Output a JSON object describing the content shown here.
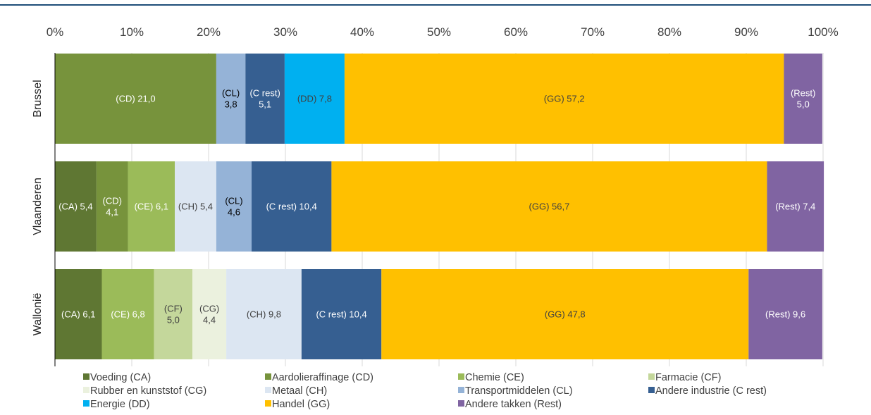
{
  "chart_data": {
    "type": "bar",
    "orientation": "horizontal",
    "stacked": true,
    "normalized_percent": true,
    "xlim": [
      0,
      100
    ],
    "x_ticks": [
      "0%",
      "10%",
      "20%",
      "30%",
      "40%",
      "50%",
      "60%",
      "70%",
      "80%",
      "90%",
      "100%"
    ],
    "grid": true,
    "legend_position": "bottom",
    "categories": [
      "Brussel",
      "Vlaanderen",
      "Wallonië"
    ],
    "series": [
      {
        "key": "CA",
        "name": "Voeding (CA)",
        "color": "#5f7733",
        "label_color": "#ffffff",
        "values": [
          null,
          5.4,
          6.1
        ],
        "labels": [
          "",
          "(CA) 5,4",
          "(CA) 6,1"
        ]
      },
      {
        "key": "CD",
        "name": "Aardolieraffinage (CD)",
        "color": "#77933c",
        "label_color": "#ffffff",
        "values": [
          21.0,
          4.1,
          null
        ],
        "labels": [
          "(CD) 21,0",
          "(CD)\n4,1",
          ""
        ]
      },
      {
        "key": "CE",
        "name": "Chemie (CE)",
        "color": "#9bbb59",
        "label_color": "#ffffff",
        "values": [
          null,
          6.1,
          6.8
        ],
        "labels": [
          "",
          "(CE) 6,1",
          "(CE) 6,8"
        ]
      },
      {
        "key": "CF",
        "name": "Farmacie (CF)",
        "color": "#c4d79b",
        "label_color": "#404040",
        "values": [
          null,
          null,
          5.0
        ],
        "labels": [
          "",
          "",
          "(CF)\n5,0"
        ]
      },
      {
        "key": "CG",
        "name": "Rubber en kunststof (CG)",
        "color": "#ebf1de",
        "label_color": "#404040",
        "values": [
          null,
          null,
          4.4
        ],
        "labels": [
          "",
          "",
          "(CG)\n4,4"
        ]
      },
      {
        "key": "CH",
        "name": "Metaal (CH)",
        "color": "#dce6f2",
        "label_color": "#404040",
        "values": [
          null,
          5.4,
          9.8
        ],
        "labels": [
          "",
          "(CH) 5,4",
          "(CH) 9,8"
        ]
      },
      {
        "key": "CL",
        "name": "Transportmiddelen (CL)",
        "color": "#95b3d7",
        "label_color": "#000000",
        "values": [
          3.8,
          4.6,
          null
        ],
        "labels": [
          "(CL)\n3,8",
          "(CL)\n4,6",
          ""
        ]
      },
      {
        "key": "Crest",
        "name": "Andere industrie (C rest)",
        "color": "#365f91",
        "label_color": "#ffffff",
        "values": [
          5.1,
          10.4,
          10.4
        ],
        "labels": [
          "(C rest)\n5,1",
          "(C rest) 10,4",
          "(C rest) 10,4"
        ]
      },
      {
        "key": "DD",
        "name": "Energie (DD)",
        "color": "#00b0f0",
        "label_color": "#404040",
        "values": [
          7.8,
          null,
          null
        ],
        "labels": [
          "(DD) 7,8",
          "",
          ""
        ]
      },
      {
        "key": "GG",
        "name": "Handel (GG)",
        "color": "#ffc000",
        "label_color": "#404040",
        "values": [
          57.2,
          56.7,
          47.8
        ],
        "labels": [
          "(GG) 57,2",
          "(GG) 56,7",
          "(GG) 47,8"
        ]
      },
      {
        "key": "Rest",
        "name": "Andere takken (Rest)",
        "color": "#8064a2",
        "label_color": "#ffffff",
        "values": [
          5.0,
          7.4,
          9.6
        ],
        "labels": [
          "(Rest)\n5,0",
          "(Rest) 7,4",
          "(Rest) 9,6"
        ]
      }
    ]
  },
  "colors": {
    "top_rule": "#1f4e79",
    "gridline": "#d9d9d9",
    "axis": "#000000",
    "text": "#404040"
  }
}
